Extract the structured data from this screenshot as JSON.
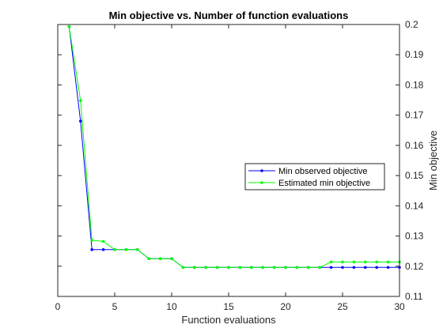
{
  "chart_data": {
    "type": "line",
    "title": "Min objective vs. Number of function evaluations",
    "xlabel": "Function evaluations",
    "ylabel": "Min objective",
    "xlim": [
      0,
      30
    ],
    "ylim": [
      0.11,
      0.2
    ],
    "xticks": [
      0,
      5,
      10,
      15,
      20,
      25,
      30
    ],
    "yticks": [
      0.11,
      0.12,
      0.13,
      0.14,
      0.15,
      0.16,
      0.17,
      0.18,
      0.19,
      0.2
    ],
    "ytick_labels": [
      "0.11",
      "0.12",
      "0.13",
      "0.14",
      "0.15",
      "0.16",
      "0.17",
      "0.18",
      "0.19",
      "0.2"
    ],
    "y_axis_side": "right",
    "grid": false,
    "legend_placement": "right",
    "series": [
      {
        "name": "Min observed objective",
        "color": "#0000ff",
        "marker": "dot",
        "x": [
          1,
          2,
          3,
          4,
          5,
          6,
          7,
          8,
          9,
          10,
          11,
          12,
          13,
          14,
          15,
          16,
          17,
          18,
          19,
          20,
          21,
          22,
          23,
          24,
          25,
          26,
          27,
          28,
          29,
          30
        ],
        "y": [
          0.1993,
          0.168,
          0.1255,
          0.1255,
          0.1255,
          0.1255,
          0.1255,
          0.1225,
          0.1225,
          0.1225,
          0.1196,
          0.1196,
          0.1196,
          0.1196,
          0.1196,
          0.1196,
          0.1196,
          0.1196,
          0.1196,
          0.1196,
          0.1196,
          0.1196,
          0.1196,
          0.1196,
          0.1196,
          0.1196,
          0.1196,
          0.1196,
          0.1196,
          0.1196
        ]
      },
      {
        "name": "Estimated min objective",
        "color": "#00ff00",
        "marker": "dot",
        "x": [
          1,
          2,
          3,
          4,
          5,
          6,
          7,
          8,
          9,
          10,
          11,
          12,
          13,
          14,
          15,
          16,
          17,
          18,
          19,
          20,
          21,
          22,
          23,
          24,
          25,
          26,
          27,
          28,
          29,
          30
        ],
        "y": [
          0.1993,
          0.1748,
          0.1286,
          0.1282,
          0.1255,
          0.1255,
          0.1255,
          0.1225,
          0.1225,
          0.1225,
          0.1196,
          0.1196,
          0.1196,
          0.1196,
          0.1196,
          0.1196,
          0.1196,
          0.1196,
          0.1196,
          0.1196,
          0.1196,
          0.1196,
          0.1196,
          0.1214,
          0.1214,
          0.1214,
          0.1214,
          0.1214,
          0.1214,
          0.1214
        ]
      }
    ]
  }
}
